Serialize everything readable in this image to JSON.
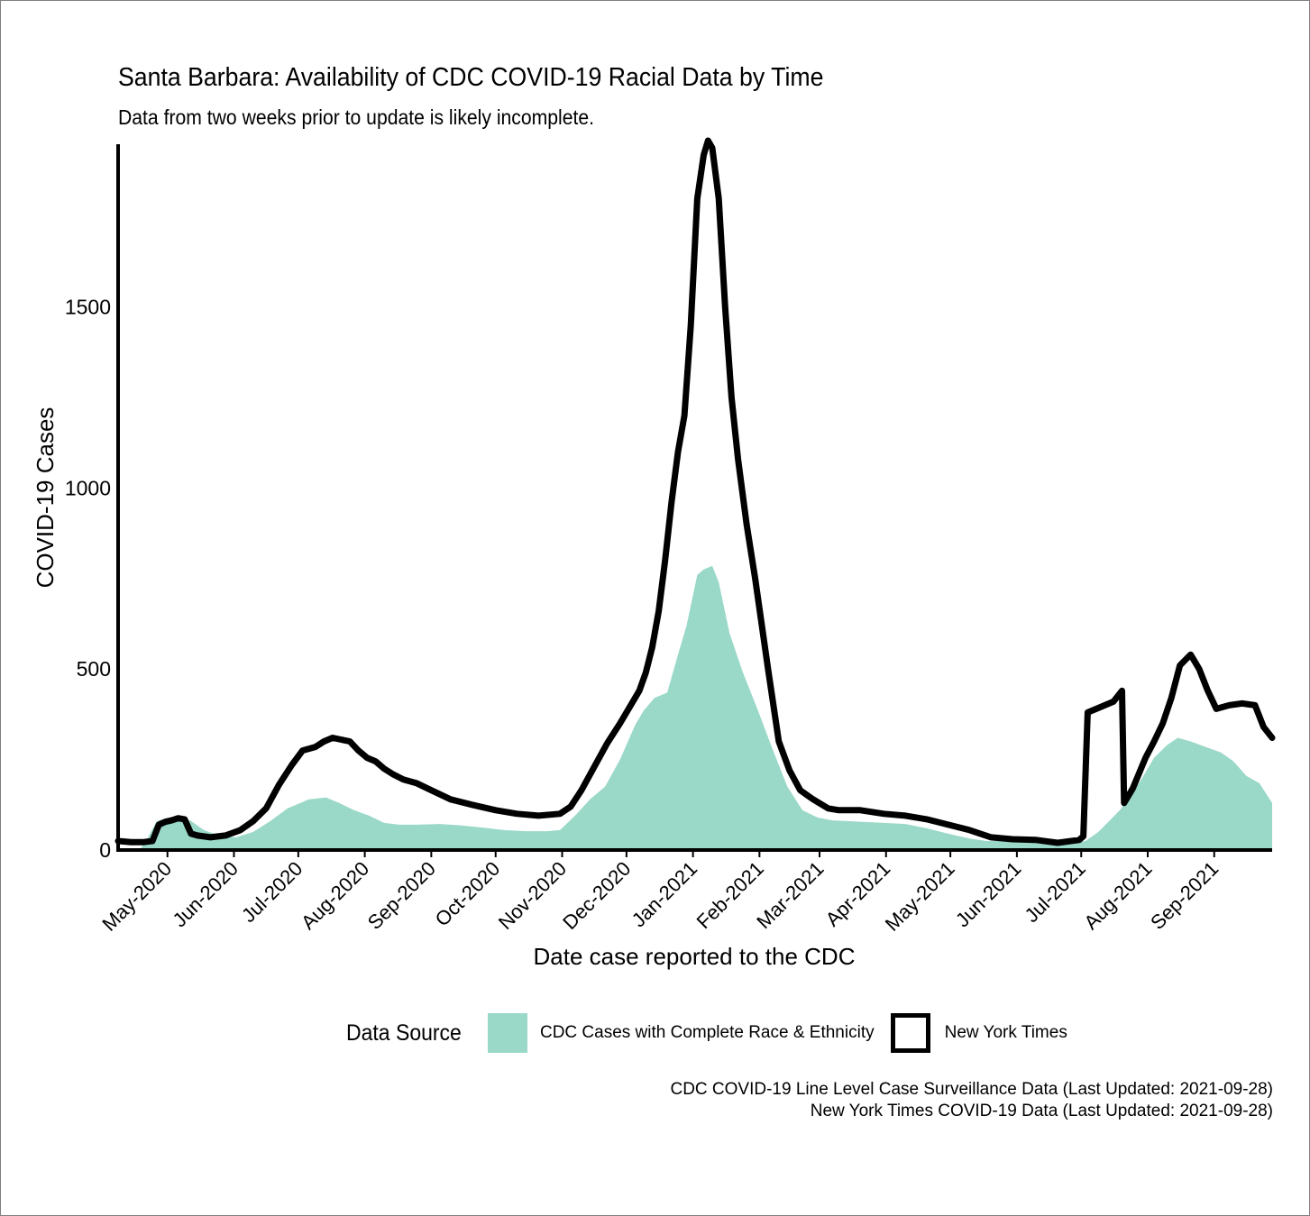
{
  "chart_data": {
    "type": "area",
    "title": "Santa Barbara: Availability of CDC COVID-19 Racial Data by Time",
    "subtitle": "Data from two weeks prior to update is likely incomplete.",
    "xlabel": "Date case reported to the CDC",
    "ylabel": "COVID-19 Cases",
    "xlim": [
      "2020-04-08",
      "2021-09-28"
    ],
    "ylim": [
      0,
      1950
    ],
    "x_ticks": [
      {
        "date": "2020-05-01",
        "label": "May-2020"
      },
      {
        "date": "2020-06-01",
        "label": "Jun-2020"
      },
      {
        "date": "2020-07-01",
        "label": "Jul-2020"
      },
      {
        "date": "2020-08-01",
        "label": "Aug-2020"
      },
      {
        "date": "2020-09-01",
        "label": "Sep-2020"
      },
      {
        "date": "2020-10-01",
        "label": "Oct-2020"
      },
      {
        "date": "2020-11-01",
        "label": "Nov-2020"
      },
      {
        "date": "2020-12-01",
        "label": "Dec-2020"
      },
      {
        "date": "2021-01-01",
        "label": "Jan-2021"
      },
      {
        "date": "2021-02-01",
        "label": "Feb-2021"
      },
      {
        "date": "2021-03-01",
        "label": "Mar-2021"
      },
      {
        "date": "2021-04-01",
        "label": "Apr-2021"
      },
      {
        "date": "2021-05-01",
        "label": "May-2021"
      },
      {
        "date": "2021-06-01",
        "label": "Jun-2021"
      },
      {
        "date": "2021-07-01",
        "label": "Jul-2021"
      },
      {
        "date": "2021-08-01",
        "label": "Aug-2021"
      },
      {
        "date": "2021-09-01",
        "label": "Sep-2021"
      }
    ],
    "y_ticks": [
      0,
      500,
      1000,
      1500
    ],
    "grid": false,
    "legend_position": "bottom",
    "legend_title": "Data Source",
    "series": [
      {
        "name": "CDC Cases with Complete Race & Ethnicity",
        "style": "area",
        "color": "#9ad8c8",
        "x": [
          "2020-04-08",
          "2020-04-18",
          "2020-04-22",
          "2020-04-26",
          "2020-05-02",
          "2020-05-07",
          "2020-05-12",
          "2020-05-18",
          "2020-05-25",
          "2020-06-02",
          "2020-06-10",
          "2020-06-18",
          "2020-06-26",
          "2020-07-06",
          "2020-07-14",
          "2020-07-20",
          "2020-07-27",
          "2020-08-03",
          "2020-08-10",
          "2020-08-17",
          "2020-08-25",
          "2020-09-05",
          "2020-09-15",
          "2020-09-25",
          "2020-10-05",
          "2020-10-15",
          "2020-10-25",
          "2020-10-31",
          "2020-11-07",
          "2020-11-14",
          "2020-11-21",
          "2020-11-28",
          "2020-12-05",
          "2020-12-09",
          "2020-12-14",
          "2020-12-20",
          "2020-12-25",
          "2020-12-29",
          "2021-01-03",
          "2021-01-06",
          "2021-01-10",
          "2021-01-13",
          "2021-01-18",
          "2021-01-24",
          "2021-01-31",
          "2021-02-07",
          "2021-02-14",
          "2021-02-21",
          "2021-02-28",
          "2021-03-07",
          "2021-03-14",
          "2021-03-21",
          "2021-03-31",
          "2021-04-10",
          "2021-04-20",
          "2021-04-30",
          "2021-05-10",
          "2021-05-18",
          "2021-05-24",
          "2021-06-01",
          "2021-06-10",
          "2021-06-20",
          "2021-06-27",
          "2021-07-03",
          "2021-07-09",
          "2021-07-14",
          "2021-07-19",
          "2021-07-24",
          "2021-07-29",
          "2021-08-04",
          "2021-08-10",
          "2021-08-15",
          "2021-08-21",
          "2021-08-28",
          "2021-09-04",
          "2021-09-10",
          "2021-09-16",
          "2021-09-22",
          "2021-09-28"
        ],
        "y": [
          0,
          0,
          35,
          80,
          90,
          90,
          80,
          55,
          40,
          35,
          50,
          80,
          115,
          140,
          145,
          130,
          110,
          95,
          75,
          70,
          70,
          72,
          68,
          62,
          55,
          52,
          52,
          55,
          95,
          140,
          175,
          250,
          345,
          385,
          420,
          435,
          540,
          620,
          760,
          775,
          785,
          740,
          600,
          495,
          390,
          280,
          175,
          110,
          90,
          82,
          80,
          78,
          75,
          72,
          60,
          45,
          32,
          25,
          25,
          22,
          20,
          15,
          20,
          25,
          50,
          80,
          110,
          150,
          195,
          255,
          290,
          310,
          300,
          285,
          270,
          245,
          205,
          185,
          130
        ]
      },
      {
        "name": "New York Times",
        "style": "line",
        "color": "#000000",
        "x": [
          "2020-04-08",
          "2020-04-14",
          "2020-04-20",
          "2020-04-24",
          "2020-04-27",
          "2020-04-30",
          "2020-05-03",
          "2020-05-06",
          "2020-05-09",
          "2020-05-12",
          "2020-05-15",
          "2020-05-21",
          "2020-05-28",
          "2020-06-04",
          "2020-06-10",
          "2020-06-16",
          "2020-06-22",
          "2020-06-28",
          "2020-07-03",
          "2020-07-09",
          "2020-07-13",
          "2020-07-17",
          "2020-07-21",
          "2020-07-25",
          "2020-07-29",
          "2020-08-02",
          "2020-08-06",
          "2020-08-10",
          "2020-08-14",
          "2020-08-19",
          "2020-08-25",
          "2020-09-01",
          "2020-09-10",
          "2020-09-20",
          "2020-10-01",
          "2020-10-11",
          "2020-10-21",
          "2020-10-31",
          "2020-11-05",
          "2020-11-10",
          "2020-11-16",
          "2020-11-22",
          "2020-11-28",
          "2020-12-03",
          "2020-12-07",
          "2020-12-10",
          "2020-12-13",
          "2020-12-16",
          "2020-12-19",
          "2020-12-22",
          "2020-12-25",
          "2020-12-28",
          "2020-12-31",
          "2021-01-03",
          "2021-01-06",
          "2021-01-08",
          "2021-01-10",
          "2021-01-13",
          "2021-01-16",
          "2021-01-19",
          "2021-01-22",
          "2021-01-26",
          "2021-01-30",
          "2021-02-05",
          "2021-02-10",
          "2021-02-15",
          "2021-02-20",
          "2021-02-26",
          "2021-03-05",
          "2021-03-10",
          "2021-03-20",
          "2021-03-31",
          "2021-04-10",
          "2021-04-20",
          "2021-04-30",
          "2021-05-10",
          "2021-05-20",
          "2021-05-30",
          "2021-06-10",
          "2021-06-20",
          "2021-06-30",
          "2021-07-02",
          "2021-07-04",
          "2021-07-10",
          "2021-07-16",
          "2021-07-20",
          "2021-07-21",
          "2021-07-25",
          "2021-07-31",
          "2021-08-04",
          "2021-08-08",
          "2021-08-12",
          "2021-08-16",
          "2021-08-21",
          "2021-08-25",
          "2021-08-29",
          "2021-09-02",
          "2021-09-08",
          "2021-09-14",
          "2021-09-20",
          "2021-09-24",
          "2021-09-28"
        ],
        "y": [
          25,
          22,
          22,
          25,
          70,
          78,
          82,
          88,
          85,
          45,
          40,
          35,
          40,
          55,
          80,
          115,
          180,
          235,
          275,
          285,
          300,
          310,
          305,
          300,
          275,
          255,
          245,
          225,
          210,
          195,
          185,
          165,
          140,
          125,
          110,
          100,
          95,
          100,
          120,
          165,
          230,
          295,
          350,
          400,
          440,
          490,
          560,
          660,
          800,
          960,
          1100,
          1200,
          1450,
          1800,
          1920,
          1960,
          1940,
          1800,
          1500,
          1250,
          1080,
          900,
          750,
          500,
          300,
          220,
          165,
          140,
          115,
          110,
          110,
          100,
          95,
          85,
          70,
          55,
          35,
          30,
          28,
          20,
          28,
          38,
          380,
          395,
          410,
          440,
          130,
          170,
          255,
          300,
          350,
          420,
          510,
          540,
          500,
          440,
          390,
          400,
          405,
          400,
          340,
          310
        ]
      }
    ],
    "caption": [
      "CDC COVID-19 Line Level Case Surveillance Data (Last Updated: 2021-09-28)",
      "New York Times COVID-19 Data (Last Updated: 2021-09-28)"
    ]
  }
}
